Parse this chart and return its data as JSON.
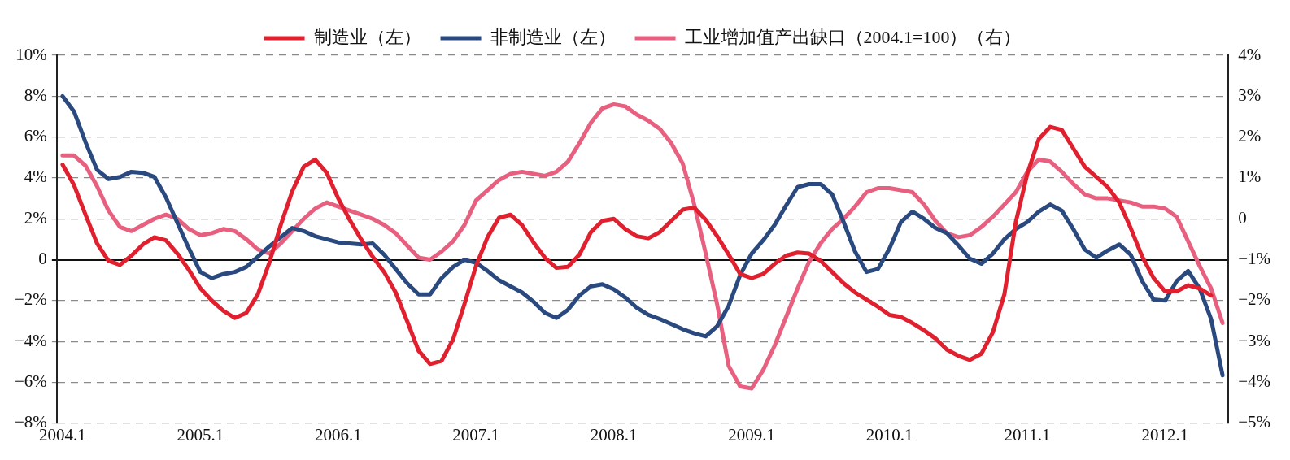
{
  "chart_data": {
    "type": "line",
    "categories": [
      "2004.1",
      null,
      null,
      null,
      null,
      null,
      null,
      null,
      null,
      null,
      null,
      null,
      "2005.1",
      null,
      null,
      null,
      null,
      null,
      null,
      null,
      null,
      null,
      null,
      null,
      "2006.1",
      null,
      null,
      null,
      null,
      null,
      null,
      null,
      null,
      null,
      null,
      null,
      "2007.1",
      null,
      null,
      null,
      null,
      null,
      null,
      null,
      null,
      null,
      null,
      null,
      "2008.1",
      null,
      null,
      null,
      null,
      null,
      null,
      null,
      null,
      null,
      null,
      null,
      "2009.1",
      null,
      null,
      null,
      null,
      null,
      null,
      null,
      null,
      null,
      null,
      null,
      "2010.1",
      null,
      null,
      null,
      null,
      null,
      null,
      null,
      null,
      null,
      null,
      null,
      "2011.1",
      null,
      null,
      null,
      null,
      null,
      null,
      null,
      null,
      null,
      null,
      null,
      "2012.1",
      null,
      null,
      null,
      null,
      null
    ],
    "series": [
      {
        "name": "制造业（左）",
        "color": "#e0202e",
        "values": [
          4.65,
          3.65,
          2.2,
          0.8,
          -0.05,
          -0.25,
          0.2,
          0.75,
          1.1,
          0.95,
          0.3,
          -0.5,
          -1.4,
          -2.0,
          -2.5,
          -2.85,
          -2.6,
          -1.7,
          -0.15,
          1.7,
          3.35,
          4.55,
          4.9,
          4.25,
          3.0,
          1.95,
          1.0,
          0.15,
          -0.6,
          -1.6,
          -3.0,
          -4.45,
          -5.1,
          -4.95,
          -3.9,
          -2.15,
          -0.3,
          1.1,
          2.05,
          2.2,
          1.7,
          0.85,
          0.1,
          -0.4,
          -0.35,
          0.25,
          1.35,
          1.9,
          2.0,
          1.5,
          1.15,
          1.05,
          1.35,
          1.9,
          2.45,
          2.55,
          1.95,
          1.15,
          0.25,
          -0.7,
          -0.9,
          -0.7,
          -0.2,
          0.2,
          0.35,
          0.3,
          -0.05,
          -0.6,
          -1.15,
          -1.6,
          -1.95,
          -2.3,
          -2.7,
          -2.8,
          -3.1,
          -3.45,
          -3.85,
          -4.4,
          -4.7,
          -4.9,
          -4.6,
          -3.55,
          -1.7,
          1.85,
          4.2,
          5.9,
          6.5,
          6.35,
          5.45,
          4.55,
          4.05,
          3.55,
          2.8,
          1.55,
          0.15,
          -0.9,
          -1.55,
          -1.55,
          -1.25,
          -1.4,
          -1.75,
          null
        ]
      },
      {
        "name": "非制造业（左）",
        "color": "#2a4a7f",
        "values": [
          8.0,
          7.25,
          5.75,
          4.4,
          3.95,
          4.05,
          4.3,
          4.25,
          4.05,
          3.05,
          1.8,
          0.55,
          -0.6,
          -0.9,
          -0.7,
          -0.6,
          -0.35,
          0.15,
          0.65,
          1.1,
          1.55,
          1.4,
          1.15,
          1.0,
          0.85,
          0.8,
          0.75,
          0.8,
          0.25,
          -0.45,
          -1.15,
          -1.7,
          -1.7,
          -0.9,
          -0.35,
          0.0,
          -0.15,
          -0.55,
          -1.0,
          -1.3,
          -1.6,
          -2.05,
          -2.6,
          -2.85,
          -2.45,
          -1.75,
          -1.3,
          -1.2,
          -1.45,
          -1.85,
          -2.35,
          -2.7,
          -2.9,
          -3.15,
          -3.4,
          -3.6,
          -3.75,
          -3.25,
          -2.25,
          -0.75,
          0.3,
          0.95,
          1.7,
          2.65,
          3.55,
          3.7,
          3.7,
          3.2,
          1.85,
          0.4,
          -0.6,
          -0.45,
          0.55,
          1.85,
          2.35,
          2.0,
          1.55,
          1.3,
          0.7,
          0.05,
          -0.2,
          0.3,
          1.0,
          1.5,
          1.85,
          2.35,
          2.7,
          2.4,
          1.5,
          0.5,
          0.1,
          0.45,
          0.75,
          0.25,
          -1.05,
          -1.95,
          -2.0,
          -1.05,
          -0.55,
          -1.4,
          -2.9,
          -5.65
        ]
      },
      {
        "name": "工业增加值产出缺口（2004.1=100）（右）",
        "color": "#e8607f",
        "axis": "y2",
        "values": [
          1.55,
          1.55,
          1.3,
          0.8,
          0.2,
          -0.2,
          -0.3,
          -0.15,
          0.0,
          0.1,
          0.0,
          -0.25,
          -0.4,
          -0.35,
          -0.25,
          -0.3,
          -0.5,
          -0.75,
          -0.85,
          -0.6,
          -0.3,
          0.0,
          0.25,
          0.4,
          0.3,
          0.2,
          0.1,
          0.0,
          -0.15,
          -0.35,
          -0.65,
          -0.95,
          -1.0,
          -0.8,
          -0.55,
          -0.15,
          0.45,
          0.7,
          0.95,
          1.1,
          1.15,
          1.1,
          1.05,
          1.15,
          1.4,
          1.85,
          2.35,
          2.7,
          2.8,
          2.75,
          2.55,
          2.4,
          2.2,
          1.85,
          1.35,
          0.35,
          -0.85,
          -2.1,
          -3.6,
          -4.1,
          -4.15,
          -3.7,
          -3.1,
          -2.4,
          -1.7,
          -1.05,
          -0.6,
          -0.25,
          0.0,
          0.3,
          0.65,
          0.75,
          0.75,
          0.7,
          0.65,
          0.35,
          -0.05,
          -0.35,
          -0.45,
          -0.4,
          -0.2,
          0.05,
          0.35,
          0.65,
          1.15,
          1.45,
          1.4,
          1.15,
          0.85,
          0.6,
          0.5,
          0.5,
          0.45,
          0.4,
          0.3,
          0.3,
          0.25,
          0.05,
          -0.55,
          -1.15,
          -1.7,
          -2.55
        ]
      }
    ],
    "ylim": [
      -8,
      10
    ],
    "yticks": [
      {
        "value": -8,
        "label": "−8%"
      },
      {
        "value": -6,
        "label": "−6%"
      },
      {
        "value": -4,
        "label": "−4%"
      },
      {
        "value": -2,
        "label": "−2%"
      },
      0,
      {
        "value": 2,
        "label": "2%"
      },
      {
        "value": 4,
        "label": "4%"
      },
      {
        "value": 6,
        "label": "6%"
      },
      {
        "value": 8,
        "label": "8%"
      },
      {
        "value": 10,
        "label": "10%"
      }
    ],
    "y2lim": [
      -5,
      4
    ],
    "y2ticks": [
      {
        "value": -5,
        "label": "−5%"
      },
      {
        "value": -4,
        "label": "−4%"
      },
      {
        "value": -3,
        "label": "−3%"
      },
      {
        "value": -2,
        "label": "−2%"
      },
      {
        "value": -1,
        "label": "−1%"
      },
      0,
      {
        "value": 1,
        "label": "1%"
      },
      {
        "value": 2,
        "label": "2%"
      },
      {
        "value": 3,
        "label": "3%"
      },
      {
        "value": 4,
        "label": "4%"
      }
    ],
    "grid": "y",
    "legend": "top"
  }
}
